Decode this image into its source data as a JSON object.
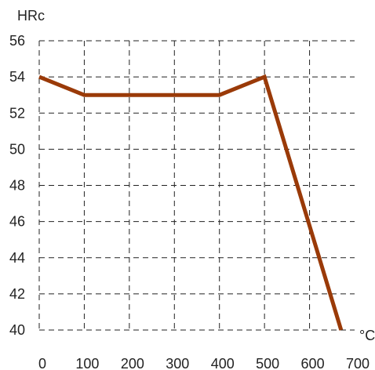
{
  "chart_data": {
    "type": "line",
    "title": "",
    "ylabel": "HRc",
    "xlabel": "°C",
    "x_ticks": [
      "0",
      "100",
      "200",
      "300",
      "400",
      "500",
      "600",
      "700"
    ],
    "y_ticks": [
      "40",
      "42",
      "44",
      "46",
      "48",
      "50",
      "52",
      "54",
      "56"
    ],
    "xlim": [
      0,
      700
    ],
    "ylim": [
      40,
      56
    ],
    "grid": true,
    "grid_style": "dashed",
    "series": [
      {
        "color": "#9a3a08",
        "x": [
          0,
          100,
          200,
          300,
          400,
          500,
          670
        ],
        "y": [
          54,
          53,
          53,
          53,
          53,
          54,
          40
        ]
      }
    ]
  }
}
